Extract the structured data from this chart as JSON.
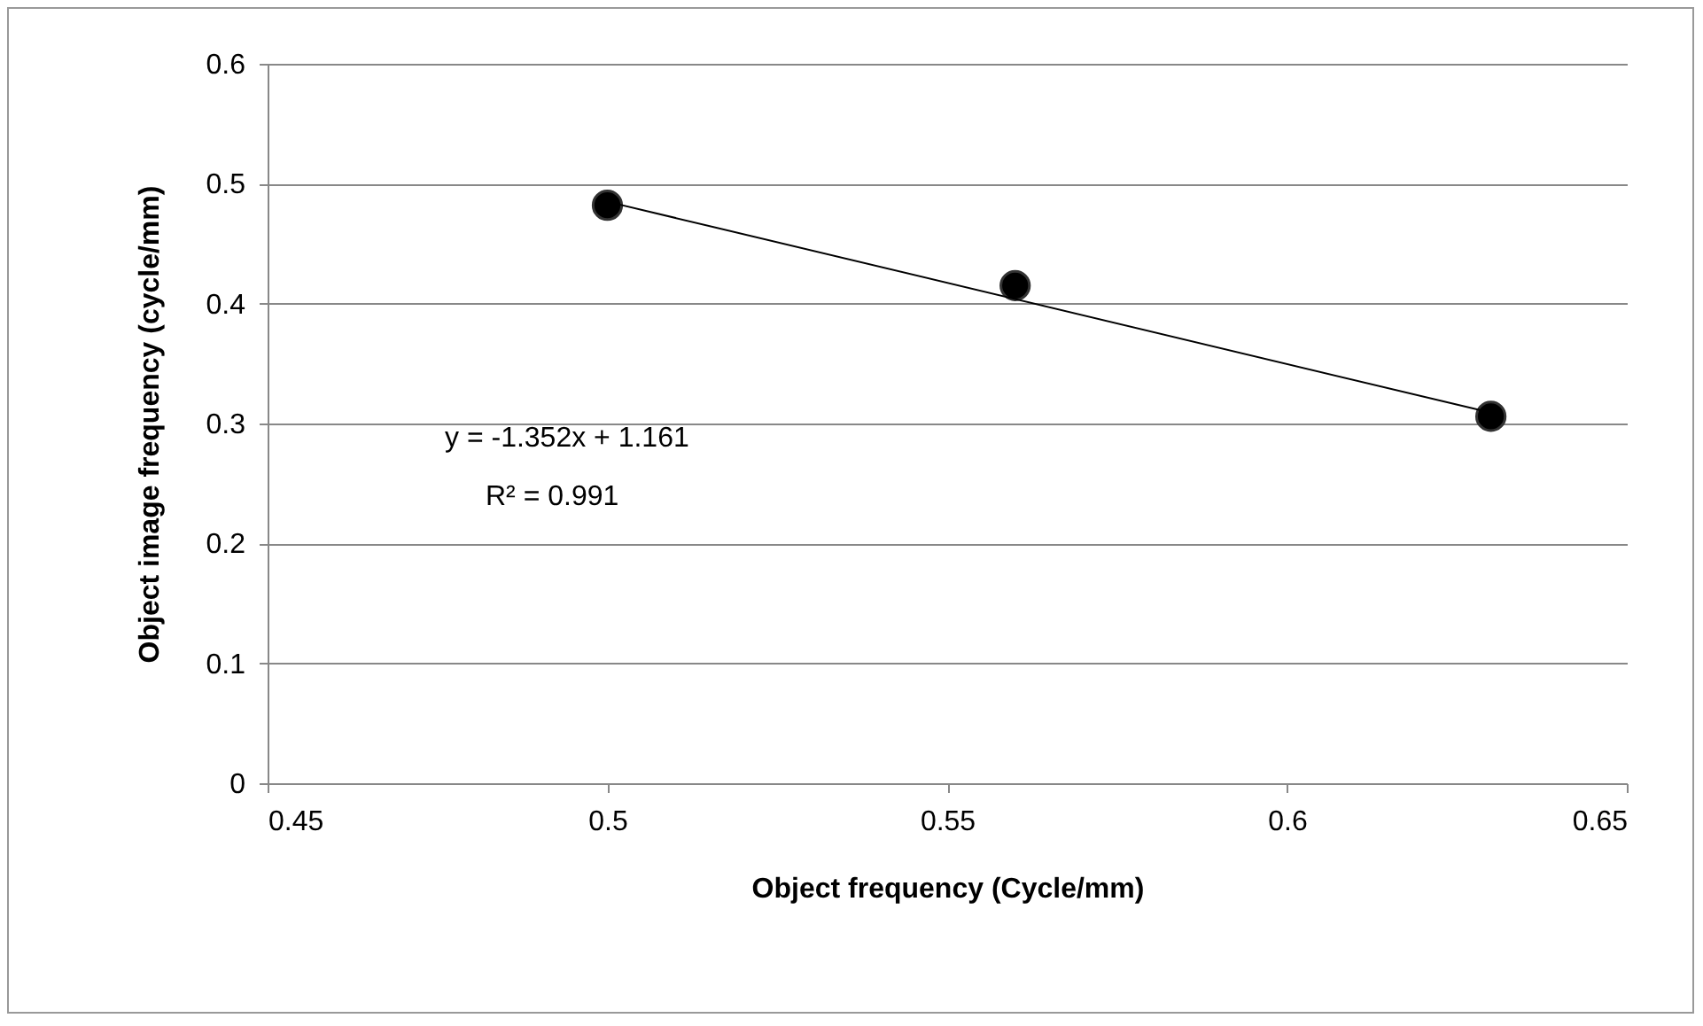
{
  "chart_data": {
    "type": "scatter",
    "xlabel": "Object frequency  (Cycle/mm)",
    "ylabel": "Object image  frequency (cycle/mm)",
    "xlim": [
      0.45,
      0.65
    ],
    "xticks": [
      0.45,
      0.5,
      0.55,
      0.6,
      0.65
    ],
    "ylim": [
      0,
      0.6
    ],
    "yticks": [
      0,
      0.1,
      0.2,
      0.3,
      0.4,
      0.5,
      0.6
    ],
    "grid": "y",
    "series": [
      {
        "marker": "circle",
        "color": "#000000",
        "x": [
          0.5,
          0.56,
          0.63
        ],
        "values": [
          0.482,
          0.415,
          0.306
        ]
      },
      {
        "type": "line",
        "color": "#000000",
        "line_style": "solid",
        "x": [
          0.5,
          0.63
        ],
        "values": [
          0.485,
          0.309
        ]
      }
    ],
    "annotations": [
      "y = -1.352x + 1.161",
      "R² = 0.991"
    ]
  }
}
